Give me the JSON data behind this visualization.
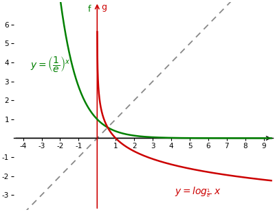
{
  "xlim": [
    -4.5,
    9.5
  ],
  "ylim": [
    -3.8,
    7.2
  ],
  "xticks": [
    -4,
    -3,
    -2,
    -1,
    0,
    1,
    2,
    3,
    4,
    5,
    6,
    7,
    8,
    9
  ],
  "yticks": [
    -3,
    -2,
    -1,
    1,
    2,
    3,
    4,
    5,
    6
  ],
  "green_color": "#008000",
  "red_color": "#cc0000",
  "dashed_color": "#888888",
  "background_color": "#ffffff",
  "label_f": "f",
  "label_g": "g",
  "figsize": [
    4.0,
    3.09
  ],
  "dpi": 100
}
